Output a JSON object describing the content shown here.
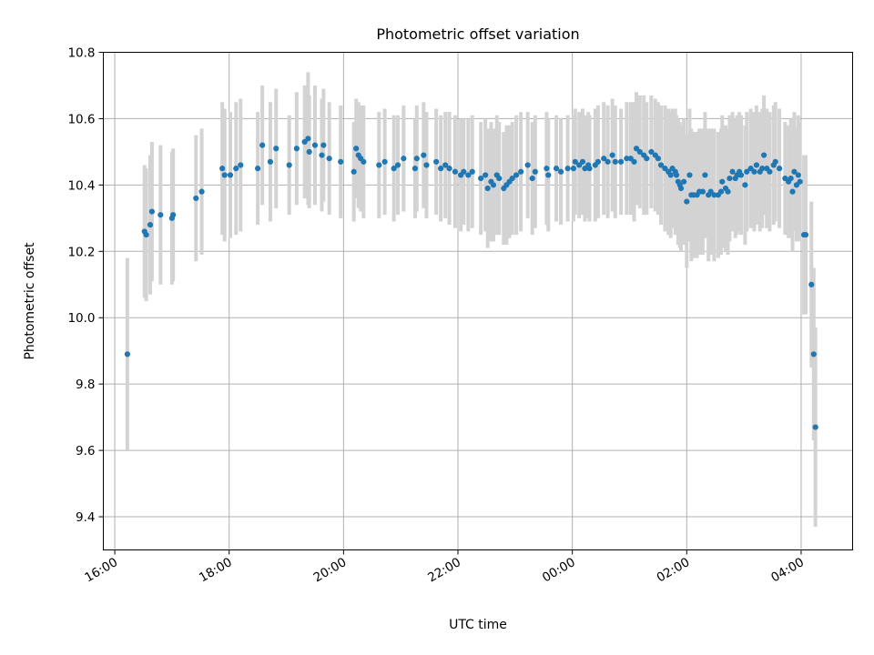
{
  "chart_data": {
    "type": "scatter",
    "title": "Photometric offset variation",
    "xlabel": "UTC time",
    "ylabel": "Photometric offset",
    "x_unit": "hours since 16:00 UTC",
    "xlim": [
      15.8,
      28.9
    ],
    "ylim": [
      9.3,
      10.8
    ],
    "xticks": [
      {
        "value": 16,
        "label": "16:00"
      },
      {
        "value": 18,
        "label": "18:00"
      },
      {
        "value": 20,
        "label": "20:00"
      },
      {
        "value": 22,
        "label": "22:00"
      },
      {
        "value": 24,
        "label": "00:00"
      },
      {
        "value": 26,
        "label": "02:00"
      },
      {
        "value": 28,
        "label": "04:00"
      }
    ],
    "yticks": [
      {
        "value": 9.4,
        "label": "9.4"
      },
      {
        "value": 9.6,
        "label": "9.6"
      },
      {
        "value": 9.8,
        "label": "9.8"
      },
      {
        "value": 10.0,
        "label": "10.0"
      },
      {
        "value": 10.2,
        "label": "10.2"
      },
      {
        "value": 10.4,
        "label": "10.4"
      },
      {
        "value": 10.6,
        "label": "10.6"
      },
      {
        "value": 10.8,
        "label": "10.8"
      }
    ],
    "grid": true,
    "colors": {
      "point": "#1f77b4",
      "error_bar": "#d3d3d3"
    },
    "series": [
      {
        "points": [
          [
            16.22,
            9.89,
            0.29
          ],
          [
            16.52,
            10.26,
            0.2
          ],
          [
            16.55,
            10.25,
            0.2
          ],
          [
            16.62,
            10.28,
            0.21
          ],
          [
            16.65,
            10.32,
            0.21
          ],
          [
            16.8,
            10.31,
            0.21
          ],
          [
            17.0,
            10.3,
            0.2
          ],
          [
            17.02,
            10.31,
            0.2
          ],
          [
            17.42,
            10.36,
            0.19
          ],
          [
            17.52,
            10.38,
            0.19
          ],
          [
            17.88,
            10.45,
            0.2
          ],
          [
            17.92,
            10.43,
            0.2
          ],
          [
            18.02,
            10.43,
            0.19
          ],
          [
            18.12,
            10.45,
            0.2
          ],
          [
            18.2,
            10.46,
            0.2
          ],
          [
            18.5,
            10.45,
            0.17
          ],
          [
            18.58,
            10.52,
            0.18
          ],
          [
            18.72,
            10.47,
            0.18
          ],
          [
            18.82,
            10.51,
            0.18
          ],
          [
            19.05,
            10.46,
            0.15
          ],
          [
            19.18,
            10.51,
            0.17
          ],
          [
            19.32,
            10.53,
            0.17
          ],
          [
            19.38,
            10.54,
            0.2
          ],
          [
            19.4,
            10.5,
            0.17
          ],
          [
            19.5,
            10.52,
            0.18
          ],
          [
            19.62,
            10.49,
            0.17
          ],
          [
            19.65,
            10.52,
            0.17
          ],
          [
            19.75,
            10.48,
            0.17
          ],
          [
            19.95,
            10.47,
            0.17
          ],
          [
            20.18,
            10.44,
            0.15
          ],
          [
            20.22,
            10.51,
            0.15
          ],
          [
            20.26,
            10.49,
            0.16
          ],
          [
            20.3,
            10.48,
            0.16
          ],
          [
            20.35,
            10.47,
            0.17
          ],
          [
            20.62,
            10.46,
            0.16
          ],
          [
            20.72,
            10.47,
            0.16
          ],
          [
            20.88,
            10.45,
            0.16
          ],
          [
            20.95,
            10.46,
            0.15
          ],
          [
            21.05,
            10.48,
            0.16
          ],
          [
            21.25,
            10.45,
            0.15
          ],
          [
            21.28,
            10.48,
            0.16
          ],
          [
            21.4,
            10.49,
            0.16
          ],
          [
            21.45,
            10.46,
            0.16
          ],
          [
            21.62,
            10.47,
            0.16
          ],
          [
            21.7,
            10.45,
            0.16
          ],
          [
            21.78,
            10.46,
            0.16
          ],
          [
            21.85,
            10.45,
            0.17
          ],
          [
            21.95,
            10.44,
            0.17
          ],
          [
            22.05,
            10.43,
            0.17
          ],
          [
            22.1,
            10.44,
            0.16
          ],
          [
            22.18,
            10.43,
            0.17
          ],
          [
            22.25,
            10.44,
            0.17
          ],
          [
            22.4,
            10.42,
            0.17
          ],
          [
            22.48,
            10.43,
            0.17
          ],
          [
            22.52,
            10.39,
            0.18
          ],
          [
            22.58,
            10.41,
            0.18
          ],
          [
            22.62,
            10.4,
            0.17
          ],
          [
            22.68,
            10.43,
            0.18
          ],
          [
            22.72,
            10.42,
            0.17
          ],
          [
            22.8,
            10.39,
            0.17
          ],
          [
            22.85,
            10.4,
            0.18
          ],
          [
            22.9,
            10.41,
            0.17
          ],
          [
            22.95,
            10.42,
            0.17
          ],
          [
            23.02,
            10.43,
            0.18
          ],
          [
            23.1,
            10.44,
            0.18
          ],
          [
            23.22,
            10.46,
            0.16
          ],
          [
            23.3,
            10.42,
            0.17
          ],
          [
            23.35,
            10.44,
            0.17
          ],
          [
            23.55,
            10.45,
            0.17
          ],
          [
            23.58,
            10.43,
            0.17
          ],
          [
            23.72,
            10.45,
            0.16
          ],
          [
            23.8,
            10.44,
            0.16
          ],
          [
            23.92,
            10.45,
            0.16
          ],
          [
            24.02,
            10.45,
            0.16
          ],
          [
            24.05,
            10.47,
            0.16
          ],
          [
            24.12,
            10.46,
            0.16
          ],
          [
            24.18,
            10.47,
            0.16
          ],
          [
            24.22,
            10.45,
            0.16
          ],
          [
            24.28,
            10.46,
            0.16
          ],
          [
            24.3,
            10.45,
            0.16
          ],
          [
            24.4,
            10.46,
            0.17
          ],
          [
            24.45,
            10.47,
            0.17
          ],
          [
            24.55,
            10.48,
            0.17
          ],
          [
            24.62,
            10.47,
            0.17
          ],
          [
            24.7,
            10.49,
            0.17
          ],
          [
            24.75,
            10.47,
            0.17
          ],
          [
            24.85,
            10.47,
            0.16
          ],
          [
            24.95,
            10.48,
            0.17
          ],
          [
            25.02,
            10.48,
            0.17
          ],
          [
            25.08,
            10.47,
            0.18
          ],
          [
            25.12,
            10.51,
            0.17
          ],
          [
            25.18,
            10.5,
            0.17
          ],
          [
            25.25,
            10.49,
            0.18
          ],
          [
            25.3,
            10.48,
            0.17
          ],
          [
            25.38,
            10.5,
            0.17
          ],
          [
            25.45,
            10.49,
            0.17
          ],
          [
            25.5,
            10.48,
            0.17
          ],
          [
            25.55,
            10.46,
            0.18
          ],
          [
            25.62,
            10.45,
            0.19
          ],
          [
            25.68,
            10.44,
            0.19
          ],
          [
            25.72,
            10.43,
            0.19
          ],
          [
            25.75,
            10.45,
            0.18
          ],
          [
            25.8,
            10.44,
            0.19
          ],
          [
            25.82,
            10.43,
            0.18
          ],
          [
            25.85,
            10.41,
            0.19
          ],
          [
            25.88,
            10.4,
            0.19
          ],
          [
            25.9,
            10.39,
            0.19
          ],
          [
            25.95,
            10.41,
            0.19
          ],
          [
            26.0,
            10.35,
            0.2
          ],
          [
            26.05,
            10.43,
            0.2
          ],
          [
            26.08,
            10.37,
            0.2
          ],
          [
            26.12,
            10.37,
            0.19
          ],
          [
            26.18,
            10.37,
            0.19
          ],
          [
            26.22,
            10.38,
            0.19
          ],
          [
            26.28,
            10.38,
            0.19
          ],
          [
            26.32,
            10.43,
            0.19
          ],
          [
            26.38,
            10.37,
            0.2
          ],
          [
            26.42,
            10.38,
            0.19
          ],
          [
            26.48,
            10.37,
            0.2
          ],
          [
            26.55,
            10.37,
            0.19
          ],
          [
            26.6,
            10.38,
            0.19
          ],
          [
            26.62,
            10.41,
            0.2
          ],
          [
            26.68,
            10.39,
            0.19
          ],
          [
            26.72,
            10.38,
            0.19
          ],
          [
            26.75,
            10.42,
            0.19
          ],
          [
            26.8,
            10.44,
            0.18
          ],
          [
            26.85,
            10.42,
            0.18
          ],
          [
            26.88,
            10.43,
            0.18
          ],
          [
            26.92,
            10.44,
            0.18
          ],
          [
            26.95,
            10.43,
            0.18
          ],
          [
            27.02,
            10.4,
            0.18
          ],
          [
            27.05,
            10.44,
            0.18
          ],
          [
            27.12,
            10.45,
            0.18
          ],
          [
            27.18,
            10.44,
            0.18
          ],
          [
            27.22,
            10.46,
            0.18
          ],
          [
            27.28,
            10.44,
            0.18
          ],
          [
            27.32,
            10.45,
            0.18
          ],
          [
            27.35,
            10.49,
            0.18
          ],
          [
            27.4,
            10.45,
            0.18
          ],
          [
            27.45,
            10.44,
            0.18
          ],
          [
            27.52,
            10.46,
            0.18
          ],
          [
            27.55,
            10.47,
            0.18
          ],
          [
            27.62,
            10.45,
            0.18
          ],
          [
            27.72,
            10.42,
            0.17
          ],
          [
            27.78,
            10.41,
            0.17
          ],
          [
            27.82,
            10.42,
            0.18
          ],
          [
            27.85,
            10.38,
            0.18
          ],
          [
            27.88,
            10.44,
            0.18
          ],
          [
            27.92,
            10.4,
            0.17
          ],
          [
            27.95,
            10.43,
            0.18
          ],
          [
            27.98,
            10.41,
            0.18
          ],
          [
            28.05,
            10.25,
            0.24
          ],
          [
            28.08,
            10.25,
            0.24
          ],
          [
            28.18,
            10.1,
            0.25
          ],
          [
            28.22,
            9.89,
            0.26
          ],
          [
            28.25,
            9.67,
            0.3
          ]
        ]
      }
    ]
  }
}
